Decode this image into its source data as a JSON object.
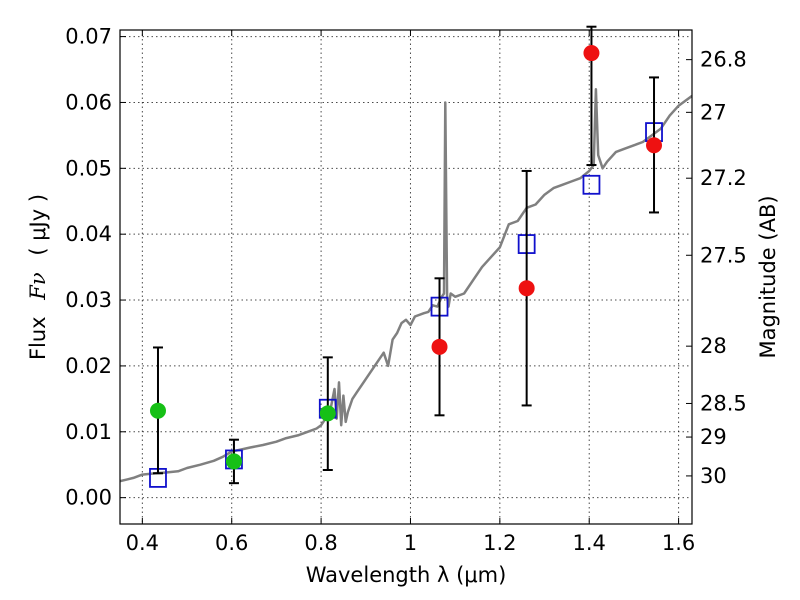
{
  "chart_data": {
    "type": "scatter",
    "xlabel": "Wavelength  λ (μm)",
    "ylabel_text": "Flux",
    "ylabel_symbol": "Fν",
    "ylabel_unit": "( μJy )",
    "y2label": "Magnitude (AB)",
    "xlim": [
      0.35,
      1.63
    ],
    "ylim": [
      -0.004,
      0.071
    ],
    "xticks": [
      0.4,
      0.6,
      0.8,
      1.0,
      1.2,
      1.4,
      1.6
    ],
    "xtick_labels": [
      "0.4",
      "0.6",
      "0.8",
      "1",
      "1.2",
      "1.4",
      "1.6"
    ],
    "yticks": [
      0.0,
      0.01,
      0.02,
      0.03,
      0.04,
      0.05,
      0.06,
      0.07
    ],
    "ytick_labels": [
      "0.00",
      "0.01",
      "0.02",
      "0.03",
      "0.04",
      "0.05",
      "0.06",
      "0.07"
    ],
    "y2ticks": [
      {
        "label": "26.8",
        "flux": 0.0665
      },
      {
        "label": "27",
        "flux": 0.0585
      },
      {
        "label": "27.2",
        "flux": 0.0485
      },
      {
        "label": "27.5",
        "flux": 0.0368
      },
      {
        "label": "28",
        "flux": 0.023
      },
      {
        "label": "28.5",
        "flux": 0.0143
      },
      {
        "label": "29",
        "flux": 0.0092
      },
      {
        "label": "30",
        "flux": 0.0033
      }
    ],
    "grid": true,
    "colors": {
      "spectrum": "#808080",
      "model_box": "#1010cc",
      "green": "#16c016",
      "red": "#ee1111",
      "errorbar": "#000000"
    },
    "series": [
      {
        "kind": "line",
        "x": [
          0.35,
          0.38,
          0.4,
          0.43,
          0.45,
          0.48,
          0.5,
          0.53,
          0.56,
          0.58,
          0.6,
          0.62,
          0.64,
          0.67,
          0.7,
          0.72,
          0.75,
          0.77,
          0.79,
          0.8,
          0.81,
          0.82,
          0.83,
          0.835,
          0.84,
          0.845,
          0.85,
          0.855,
          0.86,
          0.87,
          0.88,
          0.9,
          0.92,
          0.94,
          0.95,
          0.96,
          0.97,
          0.98,
          0.99,
          1.0,
          1.01,
          1.03,
          1.04,
          1.05,
          1.06,
          1.07,
          1.075,
          1.078,
          1.082,
          1.085,
          1.09,
          1.1,
          1.12,
          1.14,
          1.16,
          1.18,
          1.2,
          1.22,
          1.24,
          1.26,
          1.28,
          1.3,
          1.32,
          1.34,
          1.36,
          1.38,
          1.4,
          1.41,
          1.415,
          1.42,
          1.425,
          1.43,
          1.44,
          1.46,
          1.48,
          1.5,
          1.52,
          1.54,
          1.56,
          1.58,
          1.6,
          1.63
        ],
        "y": [
          0.0025,
          0.003,
          0.0035,
          0.0037,
          0.0038,
          0.004,
          0.0045,
          0.005,
          0.0056,
          0.0062,
          0.007,
          0.0073,
          0.0076,
          0.008,
          0.0085,
          0.009,
          0.0095,
          0.01,
          0.0105,
          0.011,
          0.012,
          0.013,
          0.0165,
          0.012,
          0.0175,
          0.011,
          0.0155,
          0.0115,
          0.013,
          0.015,
          0.016,
          0.018,
          0.02,
          0.022,
          0.02,
          0.024,
          0.025,
          0.0265,
          0.027,
          0.0262,
          0.0275,
          0.028,
          0.0282,
          0.0292,
          0.029,
          0.0305,
          0.031,
          0.06,
          0.0305,
          0.029,
          0.031,
          0.0305,
          0.031,
          0.033,
          0.035,
          0.0365,
          0.038,
          0.0415,
          0.042,
          0.044,
          0.0445,
          0.046,
          0.047,
          0.0475,
          0.048,
          0.0485,
          0.0496,
          0.0505,
          0.062,
          0.052,
          0.051,
          0.05,
          0.051,
          0.0525,
          0.053,
          0.0535,
          0.054,
          0.055,
          0.056,
          0.058,
          0.0595,
          0.061
        ]
      },
      {
        "kind": "model_boxes",
        "x": [
          0.435,
          0.605,
          0.815,
          1.065,
          1.26,
          1.405,
          1.545
        ],
        "y": [
          0.003,
          0.0058,
          0.0135,
          0.029,
          0.0385,
          0.0475,
          0.0555
        ]
      },
      {
        "kind": "points",
        "color_key": "green",
        "x": [
          0.435,
          0.605,
          0.815
        ],
        "y": [
          0.0132,
          0.0055,
          0.0128
        ],
        "yerr_low": [
          0.0037,
          0.0022,
          0.0042
        ],
        "yerr_high": [
          0.0228,
          0.0088,
          0.0213
        ]
      },
      {
        "kind": "points",
        "color_key": "red",
        "x": [
          1.065,
          1.26,
          1.405,
          1.545
        ],
        "y": [
          0.0229,
          0.0318,
          0.0675,
          0.0535
        ],
        "yerr_low": [
          0.0125,
          0.014,
          0.0505,
          0.0433
        ],
        "yerr_high": [
          0.0333,
          0.0496,
          0.0715,
          0.0638
        ]
      }
    ]
  }
}
